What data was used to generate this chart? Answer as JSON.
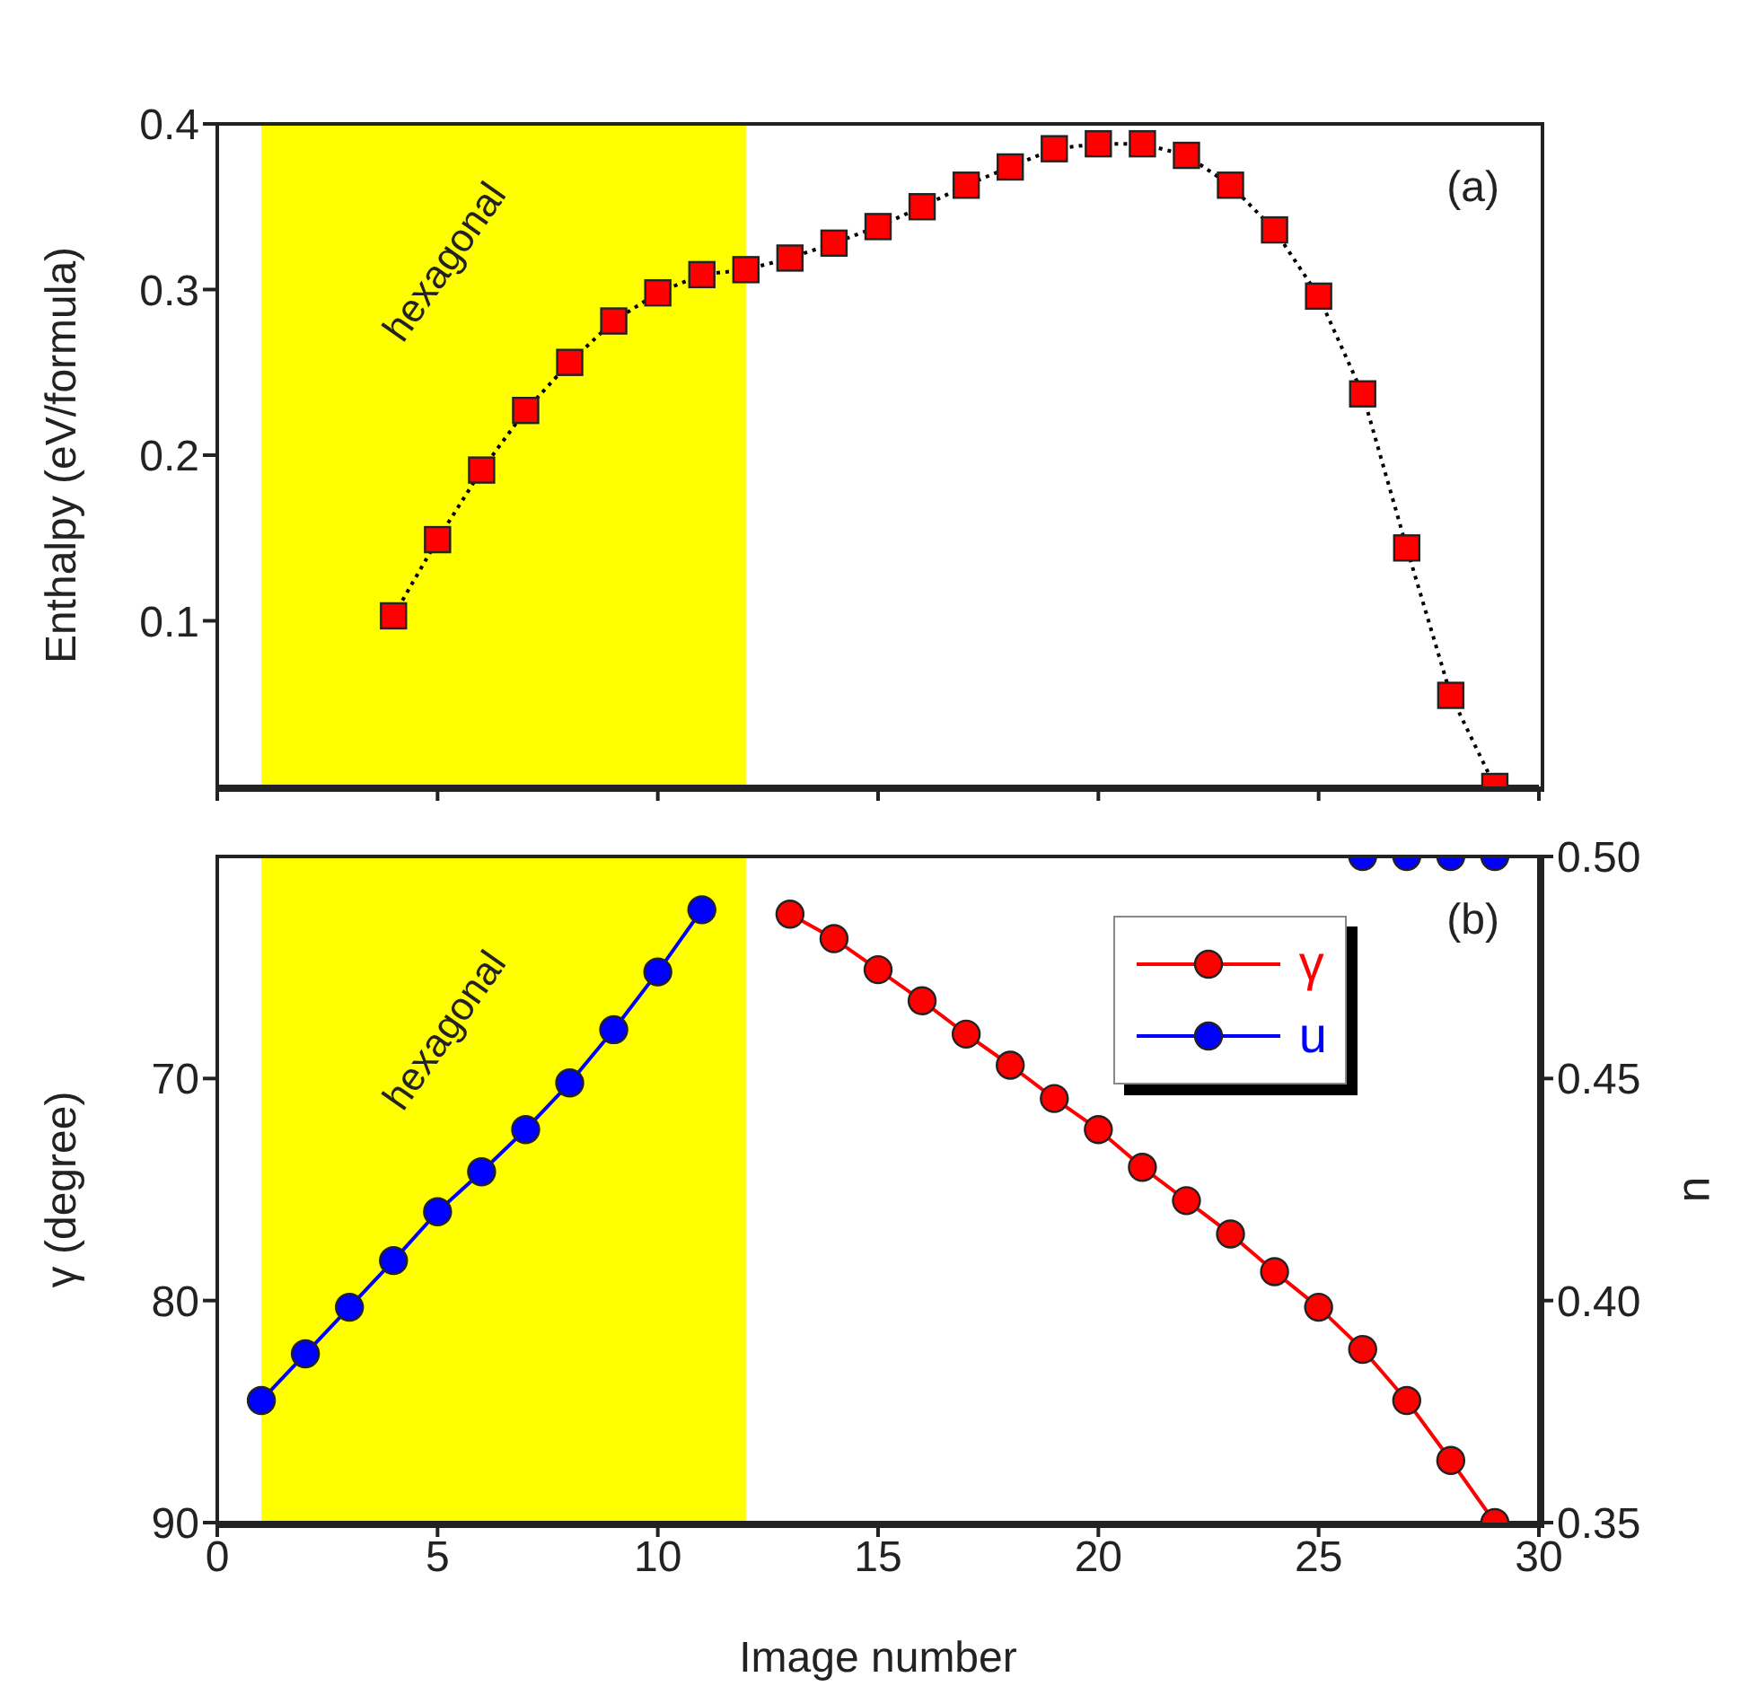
{
  "chart_data": [
    {
      "type": "line",
      "ylabel": "Enthalpy (eV/formula)",
      "x": [
        4,
        5,
        6,
        7,
        8,
        9,
        10,
        11,
        12,
        13,
        14,
        15,
        16,
        17,
        18,
        19,
        20,
        21,
        22,
        23,
        24,
        25,
        26,
        27,
        28,
        29
      ],
      "series": [
        {
          "color": "#ff0000",
          "values": [
            0.103,
            0.149,
            0.191,
            0.227,
            0.256,
            0.281,
            0.298,
            0.309,
            0.312,
            0.319,
            0.328,
            0.338,
            0.35,
            0.363,
            0.374,
            0.385,
            0.388,
            0.388,
            0.381,
            0.363,
            0.336,
            0.296,
            0.237,
            0.144,
            0.055,
            0.0
          ]
        }
      ],
      "xlim": [
        0,
        30
      ],
      "xticks": [
        0,
        5,
        10,
        15,
        20,
        25,
        30
      ],
      "ylim": [
        0,
        0.4
      ],
      "yticks": [
        0.1,
        0.2,
        0.3,
        0.4
      ],
      "tick_labels": "y",
      "marker": "square",
      "line_style": "dotted",
      "bands": [
        {
          "axis": "x",
          "from": 1,
          "to": 12,
          "label": "hexagonal",
          "color": "#ffff00"
        }
      ],
      "annotations": [
        "(a)"
      ]
    },
    {
      "type": "line",
      "xlabel": "Image number",
      "ylabel": "γ (degree)",
      "y2label": "u",
      "x": [
        1,
        2,
        3,
        4,
        5,
        6,
        7,
        8,
        9,
        10,
        11,
        12,
        13,
        14,
        15,
        16,
        17,
        18,
        19,
        20,
        21,
        22,
        23,
        24,
        25,
        26,
        27,
        28,
        29
      ],
      "series": [
        {
          "name": "γ",
          "color": "#ff0000",
          "values": [
            null,
            null,
            null,
            null,
            null,
            null,
            null,
            null,
            null,
            null,
            null,
            null,
            62.6,
            63.7,
            65.1,
            66.5,
            68.0,
            69.4,
            70.9,
            72.3,
            74.0,
            75.5,
            77.0,
            78.7,
            80.3,
            82.2,
            84.5,
            87.2,
            90
          ]
        },
        {
          "name": "u",
          "color": "#0000ff",
          "axis": "y2",
          "values": [
            0.3775,
            0.388,
            0.3985,
            0.409,
            0.42,
            0.429,
            0.4385,
            0.449,
            0.461,
            0.474,
            0.488,
            null,
            null,
            null,
            null,
            null,
            null,
            null,
            null,
            null,
            null,
            null,
            null,
            null,
            null,
            0.5,
            0.5,
            0.5,
            0.5
          ]
        }
      ],
      "xlim": [
        0,
        30
      ],
      "xticks": [
        0,
        5,
        10,
        15,
        20,
        25,
        30
      ],
      "ylim": [
        90,
        60
      ],
      "yticks": [
        70,
        80,
        90
      ],
      "y2lim": [
        0.35,
        0.5
      ],
      "y2ticks": [
        {
          "value": 0.35,
          "label": "0.35"
        },
        {
          "value": 0.4,
          "label": "0.40"
        },
        {
          "value": 0.45,
          "label": "0.45"
        },
        {
          "value": 0.5,
          "label": "0.50"
        }
      ],
      "marker": "circle",
      "line_style": "solid",
      "legend": "top right",
      "bands": [
        {
          "axis": "x",
          "from": 1,
          "to": 12,
          "label": "hexagonal",
          "color": "#ffff00"
        }
      ],
      "annotations": [
        "(b)"
      ]
    }
  ]
}
